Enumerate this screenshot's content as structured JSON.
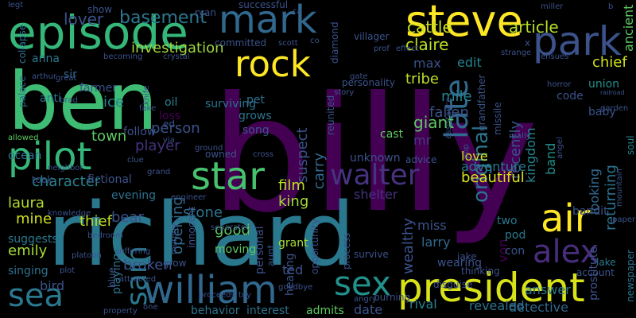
{
  "background": "#000000",
  "palette": [
    "#440154",
    "#3b528b",
    "#21918c",
    "#5ec962",
    "#fde725"
  ],
  "words": [
    {
      "text": "billy",
      "color": "#440154"
    },
    {
      "text": "ben",
      "color": "#3fbc73"
    },
    {
      "text": "richard",
      "color": "#2a788e"
    },
    {
      "text": "episode",
      "color": "#35b779"
    },
    {
      "text": "steve",
      "color": "#fde725"
    },
    {
      "text": "mark",
      "color": "#31688e"
    },
    {
      "text": "park",
      "color": "#3b528b"
    },
    {
      "text": "rock",
      "color": "#fde725"
    },
    {
      "text": "president",
      "color": "#d8e219"
    },
    {
      "text": "william",
      "color": "#31688e"
    },
    {
      "text": "pilot",
      "color": "#35b779"
    },
    {
      "text": "star",
      "color": "#48c16e"
    },
    {
      "text": "walter",
      "color": "#46327e"
    },
    {
      "text": "sea",
      "color": "#2a788e"
    },
    {
      "text": "air",
      "color": "#fde725"
    },
    {
      "text": "alex",
      "color": "#472d7b"
    },
    {
      "text": "sex",
      "color": "#21918c"
    },
    {
      "text": "sam",
      "color": "#2a788e"
    },
    {
      "text": "late",
      "color": "#31688e"
    },
    {
      "text": "original",
      "color": "#2c728e"
    },
    {
      "text": "article",
      "color": "#b5de2b"
    },
    {
      "text": "claire",
      "color": "#bddf26"
    },
    {
      "text": "cattle",
      "color": "#cae11f"
    },
    {
      "text": "basement",
      "color": "#2a788e"
    },
    {
      "text": "lover",
      "color": "#3b528b"
    },
    {
      "text": "investigation",
      "color": "#9fda3a"
    },
    {
      "text": "ancient",
      "color": "#5ec962"
    },
    {
      "text": "chief",
      "color": "#d2e21b"
    },
    {
      "text": "edit",
      "color": "#26828e"
    },
    {
      "text": "max",
      "color": "#3b528b"
    },
    {
      "text": "tribe",
      "color": "#bddf26"
    },
    {
      "text": "mile",
      "color": "#26828e"
    },
    {
      "text": "fallen",
      "color": "#3b528b"
    },
    {
      "text": "suspect",
      "color": "#3b528b"
    },
    {
      "text": "carry",
      "color": "#31688e"
    },
    {
      "text": "giant",
      "color": "#5ec962"
    },
    {
      "text": "mr",
      "color": "#443983"
    },
    {
      "text": "recently",
      "color": "#3b528b"
    },
    {
      "text": "kingdom",
      "color": "#26828e"
    },
    {
      "text": "band",
      "color": "#21918c"
    },
    {
      "text": "returning",
      "color": "#2c728e"
    },
    {
      "text": "looking",
      "color": "#31688e"
    },
    {
      "text": "code",
      "color": "#3b528b"
    },
    {
      "text": "union",
      "color": "#21918c"
    },
    {
      "text": "soul",
      "color": "#26828e"
    },
    {
      "text": "baby",
      "color": "#3b528b"
    },
    {
      "text": "person",
      "color": "#3b528b"
    },
    {
      "text": "town",
      "color": "#5ec962"
    },
    {
      "text": "player",
      "color": "#46327e"
    },
    {
      "text": "ice",
      "color": "#26828e"
    },
    {
      "text": "oil",
      "color": "#26828e"
    },
    {
      "text": "loss",
      "color": "#440154"
    },
    {
      "text": "anti",
      "color": "#2c728e"
    },
    {
      "text": "farmer",
      "color": "#3b528b"
    },
    {
      "text": "sir",
      "color": "#31688e"
    },
    {
      "text": "anna",
      "color": "#2a788e"
    },
    {
      "text": "character",
      "color": "#26828e"
    },
    {
      "text": "laura",
      "color": "#b5de2b"
    },
    {
      "text": "mine",
      "color": "#d2e21b"
    },
    {
      "text": "emily",
      "color": "#a5db36"
    },
    {
      "text": "thief",
      "color": "#bddf26"
    },
    {
      "text": "bear",
      "color": "#3b528b"
    },
    {
      "text": "stone",
      "color": "#2c728e"
    },
    {
      "text": "opening",
      "color": "#31688e"
    },
    {
      "text": "film",
      "color": "#bddf26"
    },
    {
      "text": "king",
      "color": "#a5db36"
    },
    {
      "text": "shelter",
      "color": "#46327e"
    },
    {
      "text": "beautiful",
      "color": "#d8e219"
    },
    {
      "text": "love",
      "color": "#d8e219"
    },
    {
      "text": "adventure",
      "color": "#2a788e"
    },
    {
      "text": "wealthy",
      "color": "#3b528b"
    },
    {
      "text": "good",
      "color": "#5ec962"
    },
    {
      "text": "miss",
      "color": "#3b528b"
    },
    {
      "text": "von",
      "color": "#440154"
    },
    {
      "text": "larry",
      "color": "#31688e"
    },
    {
      "text": "answer",
      "color": "#2a788e"
    },
    {
      "text": "prostitute",
      "color": "#3b528b"
    },
    {
      "text": "bandit",
      "color": "#3b528b"
    },
    {
      "text": "broken",
      "color": "#3b528b"
    },
    {
      "text": "playing",
      "color": "#2c728e"
    },
    {
      "text": "bird",
      "color": "#3b528b"
    },
    {
      "text": "singing",
      "color": "#2c728e"
    },
    {
      "text": "suggests",
      "color": "#2a788e"
    },
    {
      "text": "date",
      "color": "#3b528b"
    },
    {
      "text": "rival",
      "color": "#26828e"
    },
    {
      "text": "revealed",
      "color": "#2c728e"
    },
    {
      "text": "detective",
      "color": "#31688e"
    },
    {
      "text": "ted",
      "color": "#3b528b"
    },
    {
      "text": "hearing",
      "color": "#3b528b"
    },
    {
      "text": "moving",
      "color": "#5ec962"
    },
    {
      "text": "interest",
      "color": "#2c728e"
    },
    {
      "text": "behavior",
      "color": "#2c728e"
    },
    {
      "text": "admits",
      "color": "#5ec962"
    },
    {
      "text": "burning",
      "color": "#3b528b"
    },
    {
      "text": "newspaper",
      "color": "#2c728e"
    },
    {
      "text": "account",
      "color": "#3b528b"
    },
    {
      "text": "lake",
      "color": "#2a788e"
    },
    {
      "text": "pod",
      "color": "#2a788e"
    },
    {
      "text": "con",
      "color": "#3b528b"
    },
    {
      "text": "two",
      "color": "#2a788e"
    },
    {
      "text": "wearing",
      "color": "#3b528b"
    },
    {
      "text": "jake",
      "color": "#3b528b"
    },
    {
      "text": "disguise",
      "color": "#3b528b"
    },
    {
      "text": "thinking",
      "color": "#3b528b"
    },
    {
      "text": "grant",
      "color": "#a5db36"
    },
    {
      "text": "evening",
      "color": "#2c728e"
    },
    {
      "text": "fictional",
      "color": "#3b528b"
    },
    {
      "text": "took",
      "color": "#3b528b"
    },
    {
      "text": "ocean",
      "color": "#2c728e"
    },
    {
      "text": "follow",
      "color": "#3b528b"
    },
    {
      "text": "song",
      "color": "#3b528b"
    },
    {
      "text": "grows",
      "color": "#2c728e"
    },
    {
      "text": "pet",
      "color": "#2c728e"
    },
    {
      "text": "surviving",
      "color": "#2c728e"
    },
    {
      "text": "committed",
      "color": "#3b528b"
    },
    {
      "text": "scott",
      "color": "#3b528b"
    },
    {
      "text": "ryan",
      "color": "#3b528b"
    },
    {
      "text": "successful",
      "color": "#3b528b"
    },
    {
      "text": "show",
      "color": "#3b528b"
    },
    {
      "text": "diamond",
      "color": "#3b528b"
    },
    {
      "text": "villager",
      "color": "#3b528b"
    },
    {
      "text": "personality",
      "color": "#3b528b"
    },
    {
      "text": "miller",
      "color": "#3b528b"
    },
    {
      "text": "strange",
      "color": "#3b528b"
    },
    {
      "text": "horror",
      "color": "#3b528b"
    },
    {
      "text": "railroad",
      "color": "#3b528b"
    },
    {
      "text": "garden",
      "color": "#3b528b"
    },
    {
      "text": "mountain",
      "color": "#3b528b"
    },
    {
      "text": "paper",
      "color": "#3b528b"
    },
    {
      "text": "grandfather",
      "color": "#3b528b"
    },
    {
      "text": "missile",
      "color": "#3b528b"
    },
    {
      "text": "advice",
      "color": "#3b528b"
    },
    {
      "text": "unknown",
      "color": "#3b528b"
    },
    {
      "text": "cast",
      "color": "#5ec962"
    },
    {
      "text": "reunited",
      "color": "#3b528b"
    },
    {
      "text": "story",
      "color": "#3b528b"
    },
    {
      "text": "gate",
      "color": "#3b528b"
    },
    {
      "text": "effect",
      "color": "#3b528b"
    },
    {
      "text": "prof",
      "color": "#3b528b"
    },
    {
      "text": "palace",
      "color": "#2c728e"
    },
    {
      "text": "collapse",
      "color": "#2c728e"
    },
    {
      "text": "allowed",
      "color": "#5ec962"
    },
    {
      "text": "great",
      "color": "#3b528b"
    },
    {
      "text": "brad",
      "color": "#3b528b"
    },
    {
      "text": "knife",
      "color": "#3b528b"
    },
    {
      "text": "crystal",
      "color": "#3b528b"
    },
    {
      "text": "arthur",
      "color": "#3b528b"
    },
    {
      "text": "becoming",
      "color": "#3b528b"
    },
    {
      "text": "fake",
      "color": "#3b528b"
    },
    {
      "text": "neighbor",
      "color": "#3b528b"
    },
    {
      "text": "knowledge",
      "color": "#3b528b"
    },
    {
      "text": "platoon",
      "color": "#3b528b"
    },
    {
      "text": "engineer",
      "color": "#3b528b"
    },
    {
      "text": "murphy",
      "color": "#3b528b"
    },
    {
      "text": "innocent",
      "color": "#3b528b"
    },
    {
      "text": "separated",
      "color": "#3b528b"
    },
    {
      "text": "personal",
      "color": "#3b528b"
    },
    {
      "text": "opportunity",
      "color": "#3b528b"
    },
    {
      "text": "process",
      "color": "#3b528b"
    },
    {
      "text": "survive",
      "color": "#3b528b"
    },
    {
      "text": "aunt",
      "color": "#3b528b"
    },
    {
      "text": "angry",
      "color": "#3b528b"
    },
    {
      "text": "goodbye",
      "color": "#3b528b"
    },
    {
      "text": "proceeds",
      "color": "#3b528b"
    },
    {
      "text": "toy",
      "color": "#3b528b"
    },
    {
      "text": "one",
      "color": "#3b528b"
    },
    {
      "text": "property",
      "color": "#3b528b"
    },
    {
      "text": "attracted",
      "color": "#3b528b"
    },
    {
      "text": "blue",
      "color": "#3b528b"
    },
    {
      "text": "plot",
      "color": "#3b528b"
    },
    {
      "text": "grow",
      "color": "#3b528b"
    },
    {
      "text": "ed",
      "color": "#3b528b"
    },
    {
      "text": "via",
      "color": "#3b528b"
    },
    {
      "text": "grand",
      "color": "#3b528b"
    },
    {
      "text": "clue",
      "color": "#3b528b"
    },
    {
      "text": "bedroom",
      "color": "#3b528b"
    },
    {
      "text": "suffering",
      "color": "#3b528b"
    },
    {
      "text": "owned",
      "color": "#3b528b"
    },
    {
      "text": "cross",
      "color": "#3b528b"
    },
    {
      "text": "assistance",
      "color": "#3b528b"
    },
    {
      "text": "pop",
      "color": "#3b528b"
    },
    {
      "text": "really",
      "color": "#3b528b"
    },
    {
      "text": "ensues",
      "color": "#3b528b"
    },
    {
      "text": "angel",
      "color": "#3b528b"
    },
    {
      "text": "ground",
      "color": "#3b528b"
    },
    {
      "text": "co",
      "color": "#3b528b"
    },
    {
      "text": "ca",
      "color": "#3b528b"
    },
    {
      "text": "x",
      "color": "#3b528b"
    },
    {
      "text": "b",
      "color": "#3b528b"
    },
    {
      "text": "legt",
      "color": "#3b528b"
    }
  ]
}
